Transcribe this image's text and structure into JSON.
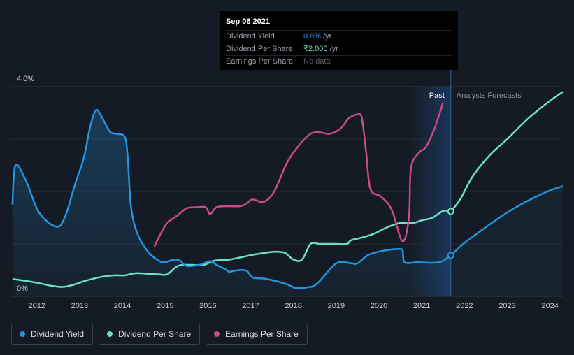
{
  "tooltip": {
    "date": "Sep 06 2021",
    "rows": [
      {
        "label": "Dividend Yield",
        "value": "0.8%",
        "unit": "/yr"
      },
      {
        "label": "Dividend Per Share",
        "value": "₹2.000",
        "unit": "/yr"
      },
      {
        "label": "Earnings Per Share",
        "value": "No data",
        "unit": ""
      }
    ]
  },
  "colors": {
    "background": "#151b24",
    "dividend_yield": "#2394df",
    "dividend_per_share": "#6ce0c4",
    "earnings_per_share": "#cb4a88",
    "grid": "#323842",
    "past_band": "#1b3a63"
  },
  "legend": [
    {
      "label": "Dividend Yield",
      "color": "#2394df"
    },
    {
      "label": "Dividend Per Share",
      "color": "#6ce0c4"
    },
    {
      "label": "Earnings Per Share",
      "color": "#cb4a88"
    }
  ],
  "chart_data": {
    "type": "line",
    "y_axis_labels": {
      "top": "4.0%",
      "bottom": "0%"
    },
    "ylim": [
      0,
      4.0
    ],
    "xlim": [
      2011.4,
      2024.3
    ],
    "x_tick_labels": [
      "2012",
      "2013",
      "2014",
      "2015",
      "2016",
      "2017",
      "2018",
      "2019",
      "2020",
      "2021",
      "2022",
      "2023",
      "2024"
    ],
    "x_tick_values": [
      2012,
      2013,
      2014,
      2015,
      2016,
      2017,
      2018,
      2019,
      2020,
      2021,
      2022,
      2023,
      2024
    ],
    "region_labels": {
      "past": "Past",
      "forecast": "Analysts Forecasts"
    },
    "past_band": [
      2020.67,
      2021.68
    ],
    "forecast_start": 2021.68,
    "series": [
      {
        "name": "Dividend Yield",
        "unit": "%",
        "area": true,
        "x": [
          2011.43,
          2011.5,
          2011.75,
          2012.05,
          2012.45,
          2012.65,
          2012.9,
          2013.1,
          2013.25,
          2013.38,
          2013.5,
          2013.7,
          2013.85,
          2014.05,
          2014.12,
          2014.2,
          2014.35,
          2014.6,
          2014.85,
          2015.0,
          2015.2,
          2015.35,
          2015.5,
          2015.8,
          2016.05,
          2016.2,
          2016.4,
          2016.5,
          2016.7,
          2016.9,
          2017.05,
          2017.3,
          2017.55,
          2017.85,
          2018.05,
          2018.3,
          2018.55,
          2019.0,
          2019.35,
          2019.5,
          2019.75,
          2020.1,
          2020.4,
          2020.55,
          2020.6,
          2020.9,
          2021.2,
          2021.45,
          2021.68
        ],
        "values": [
          1.75,
          2.5,
          2.2,
          1.6,
          1.33,
          1.5,
          2.15,
          2.65,
          3.25,
          3.55,
          3.45,
          3.15,
          3.1,
          3.05,
          2.7,
          1.72,
          1.2,
          0.85,
          0.68,
          0.65,
          0.7,
          0.68,
          0.58,
          0.6,
          0.67,
          0.6,
          0.52,
          0.47,
          0.5,
          0.49,
          0.36,
          0.34,
          0.3,
          0.23,
          0.16,
          0.17,
          0.24,
          0.63,
          0.63,
          0.63,
          0.79,
          0.87,
          0.9,
          0.88,
          0.65,
          0.65,
          0.64,
          0.66,
          0.78
        ]
      },
      {
        "name": "Dividend Yield Forecast",
        "unit": "%",
        "area": true,
        "forecast": true,
        "x": [
          2021.68,
          2022.0,
          2022.5,
          2023.0,
          2023.5,
          2024.0,
          2024.3
        ],
        "values": [
          0.78,
          1.02,
          1.32,
          1.6,
          1.83,
          2.02,
          2.1
        ]
      },
      {
        "name": "Dividend Per Share",
        "unit": "relative",
        "x": [
          2011.43,
          2011.7,
          2012.0,
          2012.35,
          2012.6,
          2012.85,
          2013.15,
          2013.5,
          2013.8,
          2014.05,
          2014.3,
          2014.6,
          2014.85,
          2015.05,
          2015.3,
          2015.6,
          2015.9,
          2016.15,
          2016.5,
          2016.8,
          2017.1,
          2017.35,
          2017.55,
          2017.8,
          2018.0,
          2018.2,
          2018.4,
          2018.6,
          2018.8,
          2019.0,
          2019.25,
          2019.35,
          2019.6,
          2019.9,
          2020.2,
          2020.5,
          2020.8,
          2021.0,
          2021.25,
          2021.5,
          2021.68
        ],
        "values": [
          0.33,
          0.3,
          0.26,
          0.2,
          0.18,
          0.22,
          0.3,
          0.37,
          0.4,
          0.4,
          0.44,
          0.43,
          0.42,
          0.42,
          0.58,
          0.6,
          0.6,
          0.68,
          0.7,
          0.75,
          0.8,
          0.83,
          0.85,
          0.83,
          0.7,
          0.7,
          1.0,
          1.0,
          1.0,
          1.0,
          1.0,
          1.07,
          1.12,
          1.2,
          1.32,
          1.4,
          1.4,
          1.45,
          1.5,
          1.63,
          1.62
        ]
      },
      {
        "name": "Dividend Per Share Forecast",
        "unit": "relative",
        "forecast": true,
        "x": [
          2021.68,
          2021.9,
          2022.2,
          2022.6,
          2023.0,
          2023.5,
          2024.0,
          2024.3
        ],
        "values": [
          1.62,
          1.85,
          2.3,
          2.7,
          3.0,
          3.4,
          3.73,
          3.9
        ]
      },
      {
        "name": "Earnings Per Share",
        "unit": "relative",
        "x": [
          2014.75,
          2014.9,
          2015.05,
          2015.3,
          2015.5,
          2015.75,
          2015.95,
          2016.05,
          2016.2,
          2016.45,
          2016.75,
          2016.9,
          2017.05,
          2017.3,
          2017.55,
          2017.85,
          2018.15,
          2018.4,
          2018.6,
          2018.85,
          2019.1,
          2019.3,
          2019.5,
          2019.6,
          2019.7,
          2019.8,
          2020.05,
          2020.3,
          2020.55,
          2020.7,
          2020.75,
          2020.95,
          2021.1,
          2021.3,
          2021.5
        ],
        "values": [
          0.95,
          1.2,
          1.4,
          1.55,
          1.68,
          1.7,
          1.7,
          1.57,
          1.7,
          1.72,
          1.72,
          1.77,
          1.85,
          1.8,
          2.0,
          2.55,
          2.9,
          3.1,
          3.13,
          3.1,
          3.2,
          3.4,
          3.47,
          3.4,
          2.75,
          2.05,
          1.9,
          1.65,
          1.05,
          1.5,
          2.45,
          2.75,
          2.85,
          3.2,
          3.7
        ]
      }
    ]
  }
}
